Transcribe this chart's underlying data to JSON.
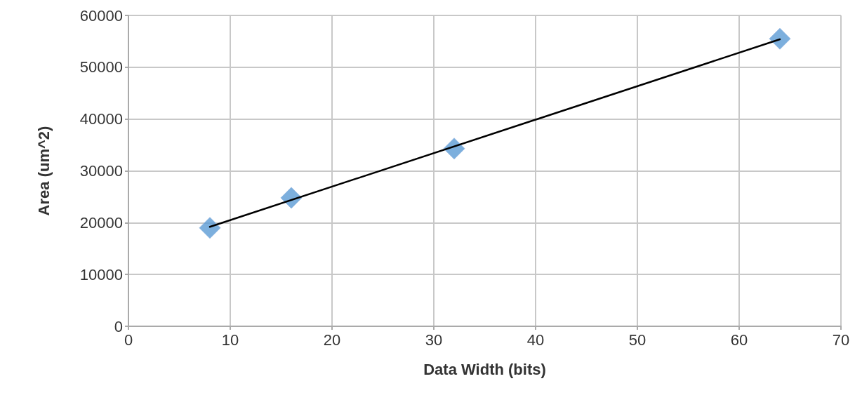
{
  "chart_data": {
    "type": "scatter",
    "xlabel": "Data Width (bits)",
    "ylabel": "Area (um^2)",
    "xlim": [
      0,
      70
    ],
    "xticks": [
      0,
      10,
      20,
      30,
      40,
      50,
      60,
      70
    ],
    "ylim": [
      0,
      60000
    ],
    "yticks": [
      0,
      10000,
      20000,
      30000,
      40000,
      50000,
      60000
    ],
    "grid": true,
    "series": [
      {
        "type": "scatter",
        "color": "#5b9bd5",
        "marker": "diamond",
        "x": [
          8,
          16,
          32,
          64
        ],
        "values": [
          19000,
          24800,
          34300,
          55500
        ]
      },
      {
        "type": "line",
        "color": "#000000",
        "marker": "none",
        "line_style": "solid",
        "x": [
          8,
          64
        ],
        "values": [
          19200,
          55400
        ]
      }
    ]
  }
}
